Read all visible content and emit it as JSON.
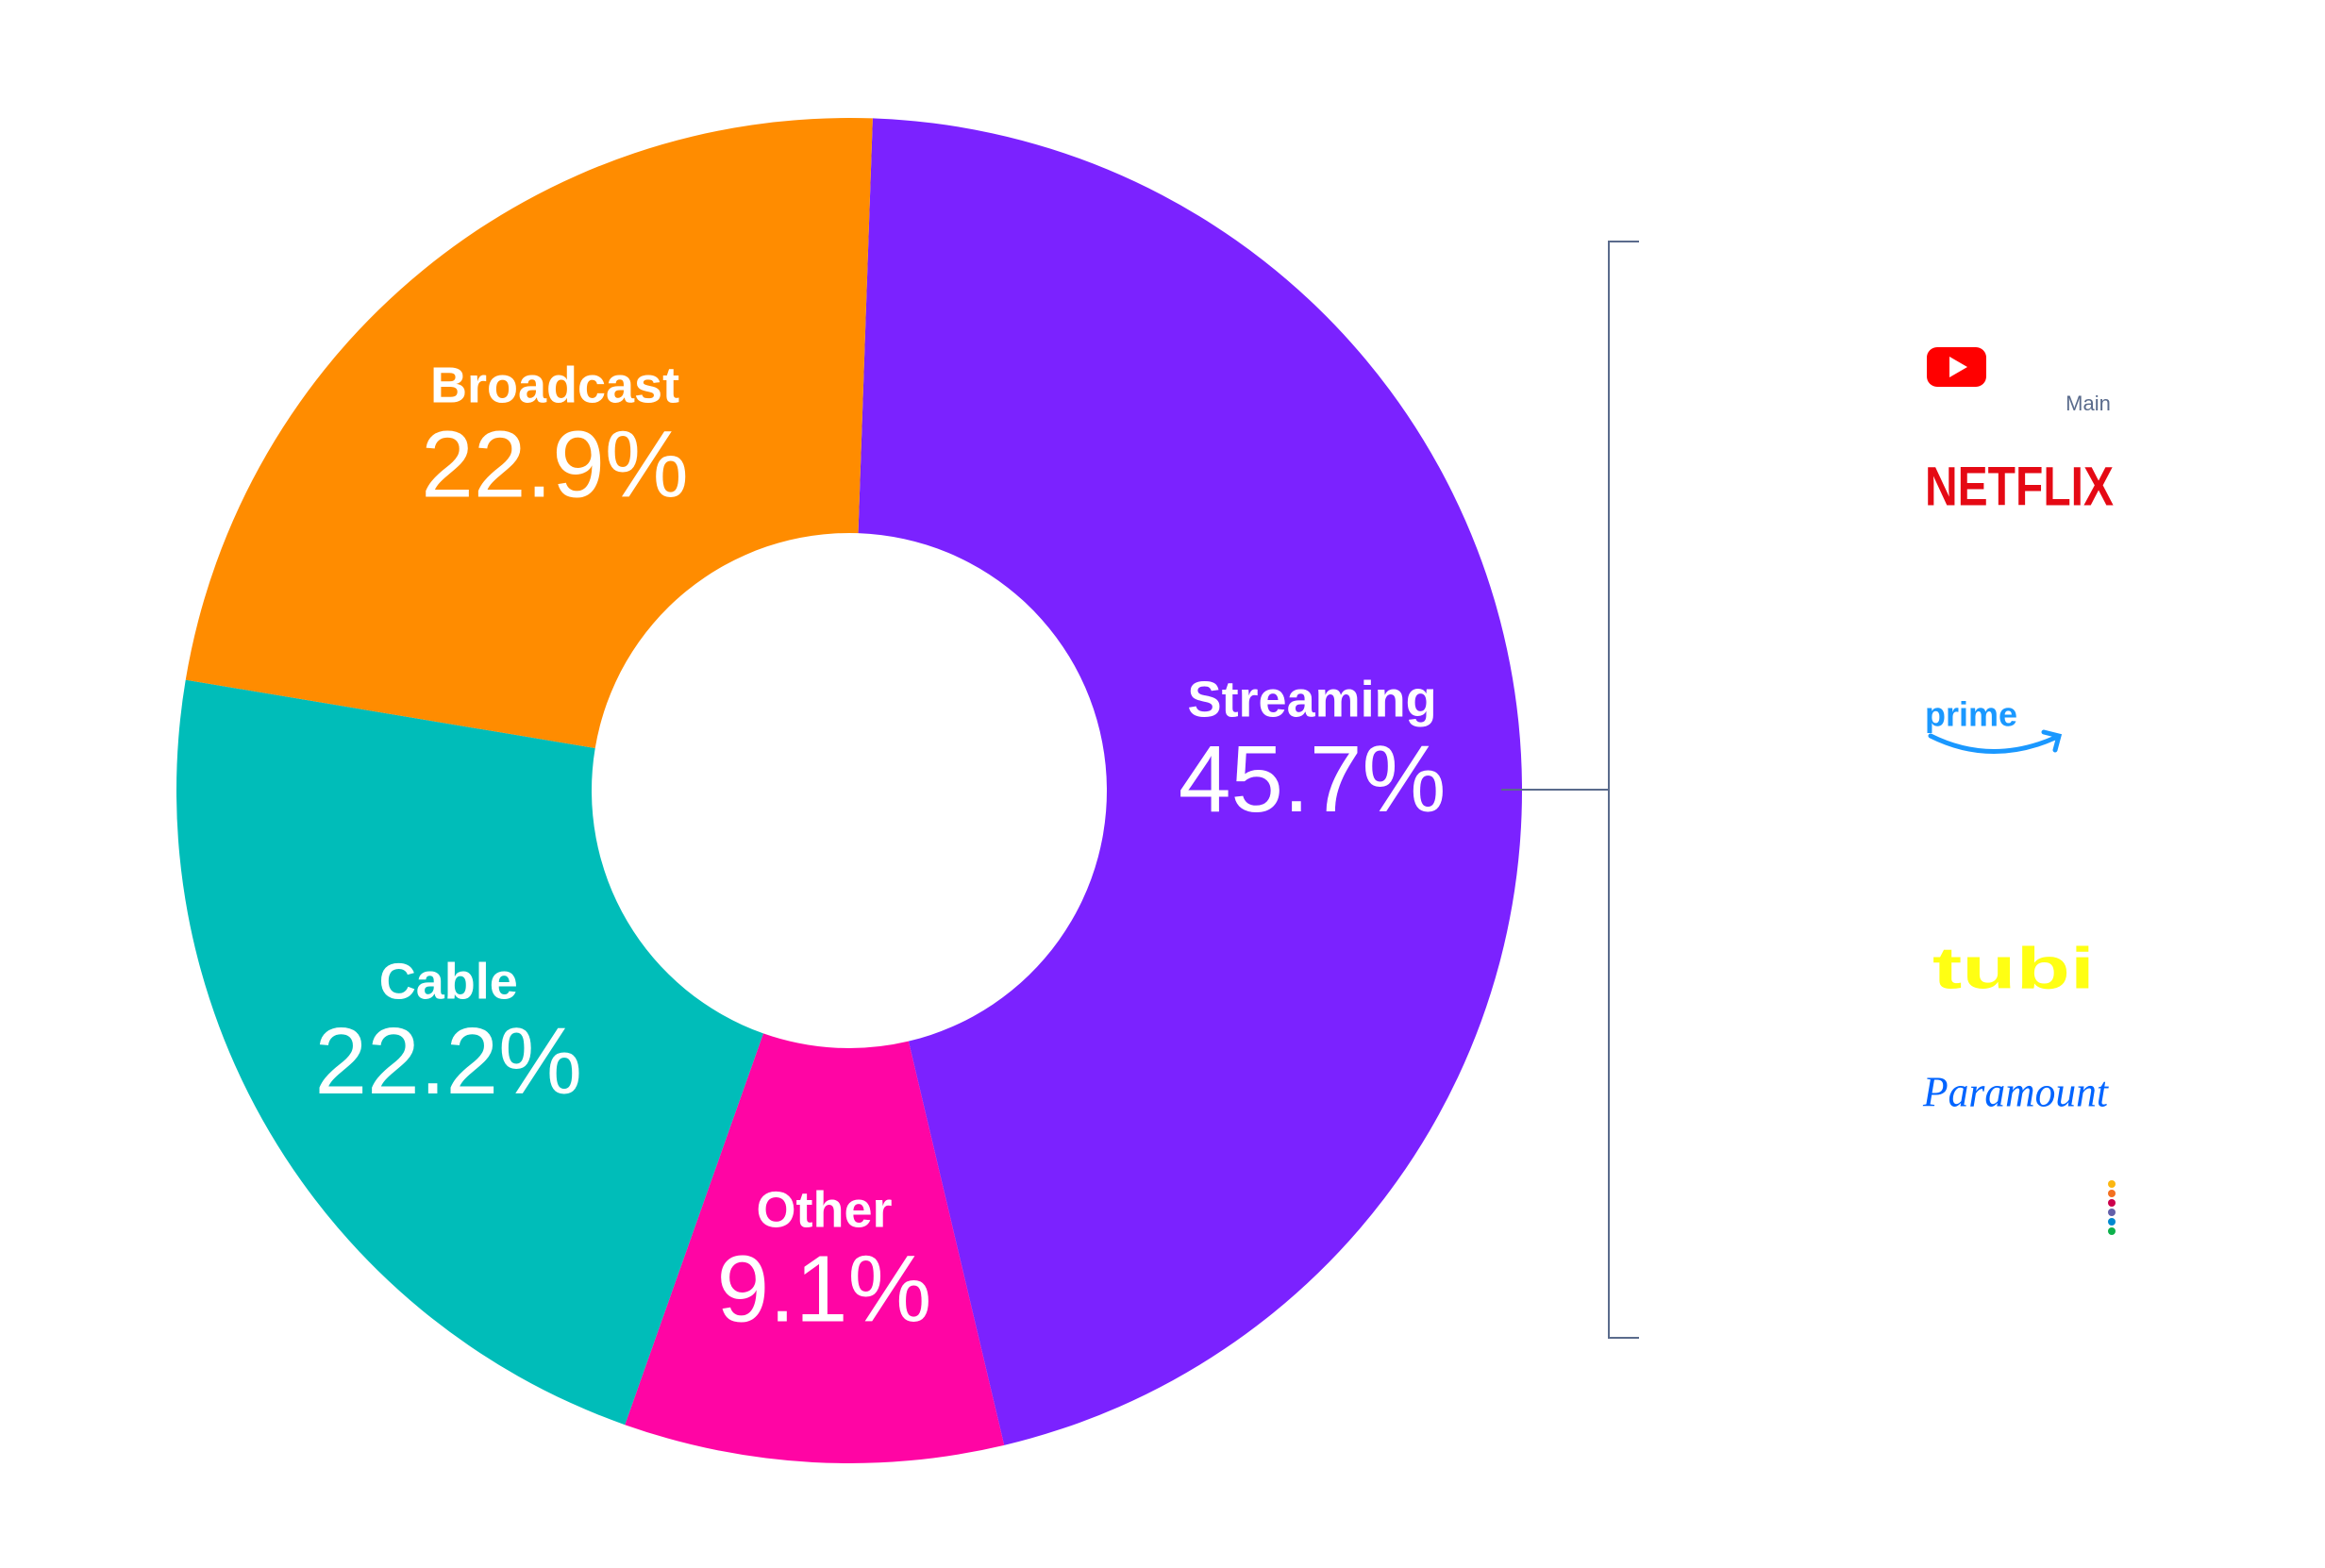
{
  "chart_data": {
    "type": "donut",
    "categories": [
      "Streaming",
      "Other",
      "Cable",
      "Broadcast"
    ],
    "values": [
      45.7,
      9.1,
      22.2,
      22.9
    ],
    "value_labels": [
      "45.7%",
      "9.1%",
      "22.2%",
      "22.9%"
    ],
    "colors": [
      "#7b22ff",
      "#ff05a4",
      "#00bdb9",
      "#ff8c00"
    ],
    "brands": [
      "Main",
      "NETFLIX",
      "prime",
      "tubi",
      "Paramount"
    ]
  }
}
